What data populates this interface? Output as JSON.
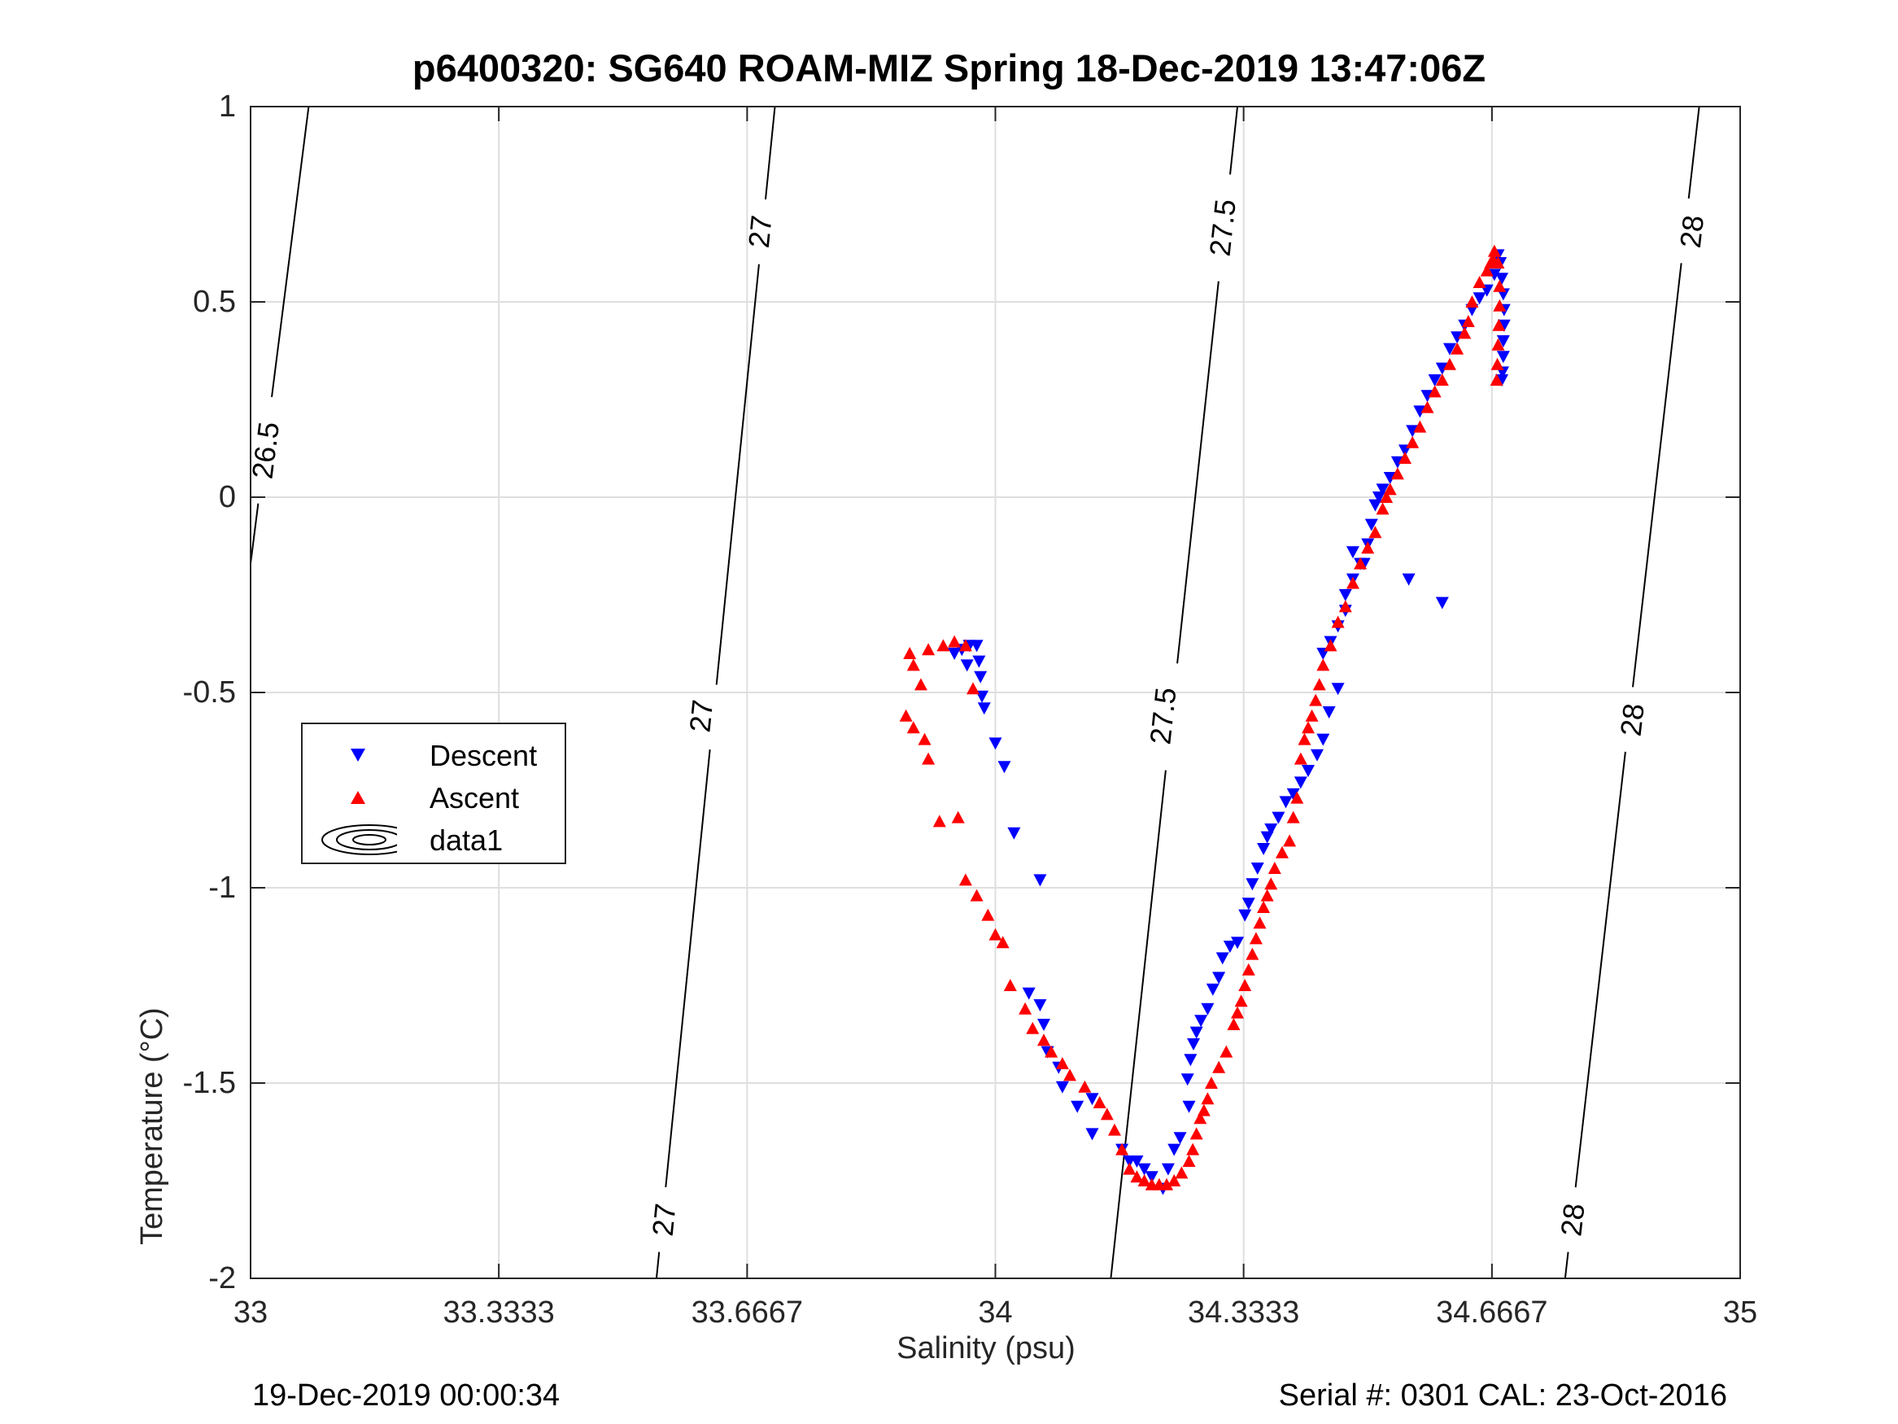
{
  "title": "p6400320: SG640 ROAM-MIZ Spring 18-Dec-2019 13:47:06Z",
  "footer": {
    "left": "19-Dec-2019 00:00:34",
    "right": "Serial #: 0301  CAL: 23-Oct-2016"
  },
  "legend": {
    "items": [
      {
        "label": "Descent",
        "symbol": "triangle-down",
        "color": "#0000ff"
      },
      {
        "label": "Ascent",
        "symbol": "triangle-up",
        "color": "#ff0000"
      },
      {
        "label": "data1",
        "symbol": "contour-ellipses",
        "color": "#000000"
      }
    ]
  },
  "chart_data": {
    "type": "scatter",
    "title": "p6400320: SG640 ROAM-MIZ Spring 18-Dec-2019 13:47:06Z",
    "xlabel": "Salinity (psu)",
    "ylabel": "Temperature (°C)",
    "xlim": [
      33,
      35
    ],
    "ylim": [
      -2,
      1
    ],
    "x_ticks": [
      33,
      33.3333,
      33.6667,
      34,
      34.3333,
      34.6667,
      35
    ],
    "x_tick_labels": [
      "33",
      "33.3333",
      "33.6667",
      "34",
      "34.3333",
      "34.6667",
      "35"
    ],
    "y_ticks": [
      -2,
      -1.5,
      -1,
      -0.5,
      0,
      0.5,
      1
    ],
    "y_tick_labels": [
      "-2",
      "-1.5",
      "-1",
      "-0.5",
      "0",
      "0.5",
      "1"
    ],
    "grid": true,
    "legend_position": "left-middle",
    "density_contours": [
      {
        "label": "26.5",
        "points": [
          [
            33.0,
            -0.17
          ],
          [
            33.078,
            1.0
          ]
        ],
        "label_positions": [
          [
            33.02,
            0.12
          ]
        ]
      },
      {
        "label": "27",
        "points": [
          [
            33.545,
            -2.0
          ],
          [
            33.704,
            1.0
          ]
        ],
        "label_positions": [
          [
            33.555,
            -1.85
          ],
          [
            33.605,
            -0.56
          ],
          [
            33.684,
            0.68
          ]
        ]
      },
      {
        "label": "27.5",
        "points": [
          [
            34.155,
            -2.0
          ],
          [
            34.325,
            1.0
          ]
        ],
        "label_positions": [
          [
            34.225,
            -0.56
          ],
          [
            34.305,
            0.69
          ]
        ]
      },
      {
        "label": "28",
        "points": [
          [
            34.765,
            -2.0
          ],
          [
            34.945,
            1.0
          ]
        ],
        "label_positions": [
          [
            34.775,
            -1.85
          ],
          [
            34.855,
            -0.57
          ],
          [
            34.935,
            0.68
          ]
        ]
      }
    ],
    "series": [
      {
        "name": "Descent",
        "marker": "triangle-down",
        "color": "#0000ff",
        "points": [
          [
            34.68,
            0.56
          ],
          [
            34.675,
            0.62
          ],
          [
            34.678,
            0.6
          ],
          [
            34.682,
            0.52
          ],
          [
            34.683,
            0.48
          ],
          [
            34.683,
            0.44
          ],
          [
            34.682,
            0.4
          ],
          [
            34.682,
            0.36
          ],
          [
            34.681,
            0.32
          ],
          [
            34.68,
            0.3
          ],
          [
            34.67,
            0.57
          ],
          [
            34.66,
            0.53
          ],
          [
            34.65,
            0.51
          ],
          [
            34.64,
            0.48
          ],
          [
            34.63,
            0.44
          ],
          [
            34.62,
            0.41
          ],
          [
            34.61,
            0.38
          ],
          [
            34.6,
            0.33
          ],
          [
            34.59,
            0.3
          ],
          [
            34.58,
            0.26
          ],
          [
            34.57,
            0.22
          ],
          [
            34.56,
            0.17
          ],
          [
            34.55,
            0.12
          ],
          [
            34.54,
            0.09
          ],
          [
            34.53,
            0.05
          ],
          [
            34.52,
            0.02
          ],
          [
            34.515,
            0.0
          ],
          [
            34.51,
            -0.02
          ],
          [
            34.505,
            -0.07
          ],
          [
            34.5,
            -0.12
          ],
          [
            34.49,
            -0.17
          ],
          [
            34.48,
            -0.21
          ],
          [
            34.47,
            -0.25
          ],
          [
            34.555,
            -0.21
          ],
          [
            34.6,
            -0.27
          ],
          [
            34.48,
            -0.14
          ],
          [
            34.495,
            -0.17
          ],
          [
            34.47,
            -0.29
          ],
          [
            34.46,
            -0.33
          ],
          [
            34.45,
            -0.37
          ],
          [
            34.44,
            -0.4
          ],
          [
            34.46,
            -0.49
          ],
          [
            34.448,
            -0.55
          ],
          [
            34.44,
            -0.62
          ],
          [
            34.432,
            -0.66
          ],
          [
            34.42,
            -0.7
          ],
          [
            34.41,
            -0.73
          ],
          [
            34.4,
            -0.76
          ],
          [
            34.39,
            -0.78
          ],
          [
            34.38,
            -0.82
          ],
          [
            34.37,
            -0.85
          ],
          [
            34.365,
            -0.87
          ],
          [
            34.36,
            -0.9
          ],
          [
            34.352,
            -0.95
          ],
          [
            34.345,
            -0.99
          ],
          [
            34.34,
            -1.04
          ],
          [
            34.335,
            -1.07
          ],
          [
            34.325,
            -1.14
          ],
          [
            34.315,
            -1.15
          ],
          [
            34.305,
            -1.18
          ],
          [
            34.3,
            -1.23
          ],
          [
            34.292,
            -1.26
          ],
          [
            34.285,
            -1.31
          ],
          [
            34.276,
            -1.34
          ],
          [
            34.27,
            -1.37
          ],
          [
            34.266,
            -1.4
          ],
          [
            34.262,
            -1.44
          ],
          [
            34.258,
            -1.49
          ],
          [
            34.26,
            -1.56
          ],
          [
            34.248,
            -1.64
          ],
          [
            34.24,
            -1.67
          ],
          [
            34.232,
            -1.72
          ],
          [
            34.225,
            -1.77
          ],
          [
            34.21,
            -1.74
          ],
          [
            34.2,
            -1.72
          ],
          [
            34.19,
            -1.7
          ],
          [
            34.18,
            -1.7
          ],
          [
            34.17,
            -1.67
          ],
          [
            34.13,
            -1.63
          ],
          [
            34.11,
            -1.56
          ],
          [
            34.09,
            -1.51
          ],
          [
            34.085,
            -1.46
          ],
          [
            34.07,
            -1.42
          ],
          [
            34.13,
            -1.54
          ],
          [
            34.065,
            -1.35
          ],
          [
            34.06,
            -1.3
          ],
          [
            34.045,
            -1.27
          ],
          [
            34.06,
            -0.98
          ],
          [
            34.025,
            -0.86
          ],
          [
            34.012,
            -0.69
          ],
          [
            34.0,
            -0.63
          ],
          [
            33.985,
            -0.54
          ],
          [
            33.982,
            -0.51
          ],
          [
            33.98,
            -0.46
          ],
          [
            33.978,
            -0.42
          ],
          [
            33.975,
            -0.38
          ],
          [
            33.965,
            -0.38
          ],
          [
            33.955,
            -0.39
          ],
          [
            33.945,
            -0.4
          ],
          [
            33.962,
            -0.43
          ]
        ]
      },
      {
        "name": "Ascent",
        "marker": "triangle-up",
        "color": "#ff0000",
        "points": [
          [
            34.668,
            0.61
          ],
          [
            34.67,
            0.63
          ],
          [
            34.675,
            0.6
          ],
          [
            34.677,
            0.54
          ],
          [
            34.677,
            0.49
          ],
          [
            34.676,
            0.44
          ],
          [
            34.675,
            0.39
          ],
          [
            34.674,
            0.34
          ],
          [
            34.673,
            0.3
          ],
          [
            34.665,
            0.6
          ],
          [
            34.66,
            0.58
          ],
          [
            34.65,
            0.55
          ],
          [
            34.64,
            0.5
          ],
          [
            34.635,
            0.45
          ],
          [
            34.63,
            0.42
          ],
          [
            34.62,
            0.38
          ],
          [
            34.61,
            0.34
          ],
          [
            34.6,
            0.3
          ],
          [
            34.59,
            0.27
          ],
          [
            34.58,
            0.23
          ],
          [
            34.57,
            0.18
          ],
          [
            34.56,
            0.14
          ],
          [
            34.55,
            0.1
          ],
          [
            34.54,
            0.06
          ],
          [
            34.53,
            0.02
          ],
          [
            34.525,
            0.0
          ],
          [
            34.52,
            -0.03
          ],
          [
            34.51,
            -0.09
          ],
          [
            34.5,
            -0.13
          ],
          [
            34.49,
            -0.17
          ],
          [
            34.48,
            -0.22
          ],
          [
            34.47,
            -0.28
          ],
          [
            34.46,
            -0.32
          ],
          [
            34.45,
            -0.38
          ],
          [
            34.44,
            -0.43
          ],
          [
            34.435,
            -0.48
          ],
          [
            34.43,
            -0.52
          ],
          [
            34.425,
            -0.56
          ],
          [
            34.42,
            -0.59
          ],
          [
            34.415,
            -0.62
          ],
          [
            34.41,
            -0.67
          ],
          [
            34.405,
            -0.77
          ],
          [
            34.4,
            -0.82
          ],
          [
            34.395,
            -0.88
          ],
          [
            34.385,
            -0.91
          ],
          [
            34.375,
            -0.95
          ],
          [
            34.37,
            -0.99
          ],
          [
            34.365,
            -1.02
          ],
          [
            34.36,
            -1.05
          ],
          [
            34.355,
            -1.09
          ],
          [
            34.35,
            -1.13
          ],
          [
            34.345,
            -1.17
          ],
          [
            34.34,
            -1.21
          ],
          [
            34.335,
            -1.25
          ],
          [
            34.33,
            -1.29
          ],
          [
            34.325,
            -1.32
          ],
          [
            34.32,
            -1.35
          ],
          [
            34.31,
            -1.42
          ],
          [
            34.3,
            -1.46
          ],
          [
            34.29,
            -1.5
          ],
          [
            34.285,
            -1.54
          ],
          [
            34.28,
            -1.57
          ],
          [
            34.275,
            -1.59
          ],
          [
            34.27,
            -1.63
          ],
          [
            34.265,
            -1.67
          ],
          [
            34.26,
            -1.7
          ],
          [
            34.25,
            -1.73
          ],
          [
            34.24,
            -1.75
          ],
          [
            34.23,
            -1.76
          ],
          [
            34.22,
            -1.76
          ],
          [
            34.21,
            -1.76
          ],
          [
            34.2,
            -1.75
          ],
          [
            34.19,
            -1.74
          ],
          [
            34.18,
            -1.72
          ],
          [
            34.17,
            -1.67
          ],
          [
            34.16,
            -1.62
          ],
          [
            34.15,
            -1.58
          ],
          [
            34.14,
            -1.55
          ],
          [
            34.12,
            -1.51
          ],
          [
            34.1,
            -1.48
          ],
          [
            34.09,
            -1.45
          ],
          [
            34.075,
            -1.42
          ],
          [
            34.065,
            -1.39
          ],
          [
            34.05,
            -1.36
          ],
          [
            34.04,
            -1.31
          ],
          [
            34.02,
            -1.25
          ],
          [
            34.01,
            -1.14
          ],
          [
            34.0,
            -1.12
          ],
          [
            33.99,
            -1.07
          ],
          [
            33.975,
            -1.02
          ],
          [
            33.96,
            -0.98
          ],
          [
            33.925,
            -0.83
          ],
          [
            33.95,
            -0.82
          ],
          [
            33.91,
            -0.67
          ],
          [
            33.905,
            -0.62
          ],
          [
            33.89,
            -0.59
          ],
          [
            33.88,
            -0.56
          ],
          [
            33.9,
            -0.48
          ],
          [
            33.89,
            -0.43
          ],
          [
            33.885,
            -0.4
          ],
          [
            33.91,
            -0.39
          ],
          [
            33.93,
            -0.38
          ],
          [
            33.945,
            -0.37
          ],
          [
            33.96,
            -0.38
          ],
          [
            33.97,
            -0.49
          ]
        ]
      }
    ]
  }
}
